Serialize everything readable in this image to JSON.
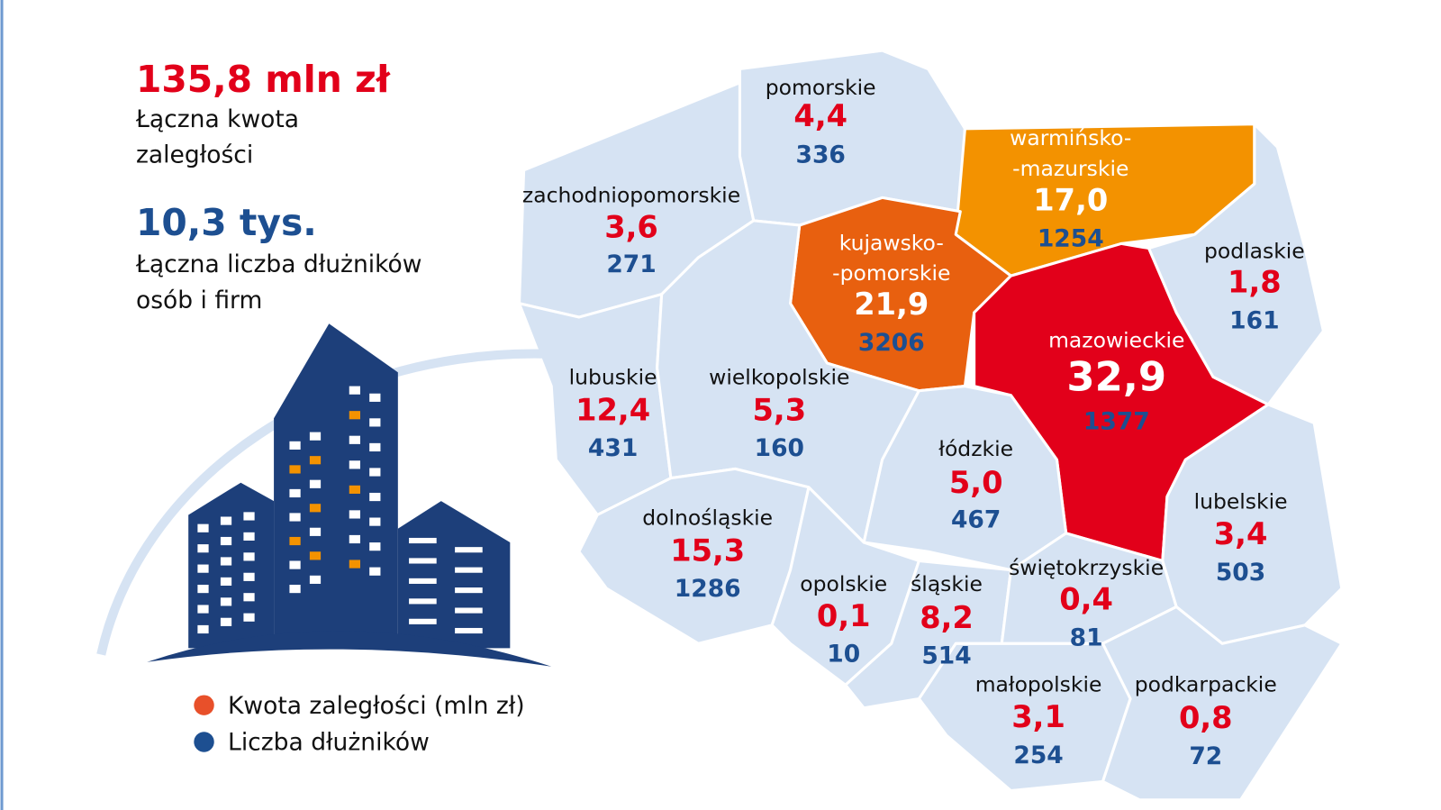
{
  "summary": {
    "amount": "135,8 mln zł",
    "amount_label": [
      "Łączna kwota",
      "zaległości"
    ],
    "count": "10,3 tys.",
    "count_label": [
      "Łączna liczba dłużników",
      "osób i firm"
    ]
  },
  "legend": [
    {
      "label": "Kwota zaległości (mln zł)",
      "color": "#e8502a"
    },
    {
      "label": "Liczba dłużników",
      "color": "#1d4f91"
    }
  ],
  "regions": [
    {
      "name": [
        "pomorskie"
      ],
      "amount": "4,4",
      "debtors": 336,
      "color": "#d6e3f3"
    },
    {
      "name": [
        "zachodniopomorskie"
      ],
      "amount": "3,6",
      "debtors": 271,
      "color": "#d6e3f3"
    },
    {
      "name": [
        "warmińsko-",
        "-mazurskie"
      ],
      "amount": "17,0",
      "debtors": 1254,
      "color": "#f39200"
    },
    {
      "name": [
        "podlaskie"
      ],
      "amount": "1,8",
      "debtors": 161,
      "color": "#d6e3f3"
    },
    {
      "name": [
        "kujawsko-",
        "-pomorskie"
      ],
      "amount": "21,9",
      "debtors": 3206,
      "color": "#e8600f"
    },
    {
      "name": [
        "mazowieckie"
      ],
      "amount": "32,9",
      "debtors": 1377,
      "color": "#e2001a"
    },
    {
      "name": [
        "lubuskie"
      ],
      "amount": "12,4",
      "debtors": 431,
      "color": "#d6e3f3"
    },
    {
      "name": [
        "wielkopolskie"
      ],
      "amount": "5,3",
      "debtors": 160,
      "color": "#d6e3f3"
    },
    {
      "name": [
        "łódzkie"
      ],
      "amount": "5,0",
      "debtors": 467,
      "color": "#d6e3f3"
    },
    {
      "name": [
        "lubelskie"
      ],
      "amount": "3,4",
      "debtors": 503,
      "color": "#d6e3f3"
    },
    {
      "name": [
        "dolnośląskie"
      ],
      "amount": "15,3",
      "debtors": 1286,
      "color": "#d6e3f3"
    },
    {
      "name": [
        "opolskie"
      ],
      "amount": "0,1",
      "debtors": 10,
      "color": "#d6e3f3"
    },
    {
      "name": [
        "śląskie"
      ],
      "amount": "8,2",
      "debtors": 514,
      "color": "#d6e3f3"
    },
    {
      "name": [
        "świętokrzyskie"
      ],
      "amount": "0,4",
      "debtors": 81,
      "color": "#d6e3f3"
    },
    {
      "name": [
        "małopolskie"
      ],
      "amount": "3,1",
      "debtors": 254,
      "color": "#d6e3f3"
    },
    {
      "name": [
        "podkarpackie"
      ],
      "amount": "0,8",
      "debtors": 72,
      "color": "#d6e3f3"
    }
  ]
}
